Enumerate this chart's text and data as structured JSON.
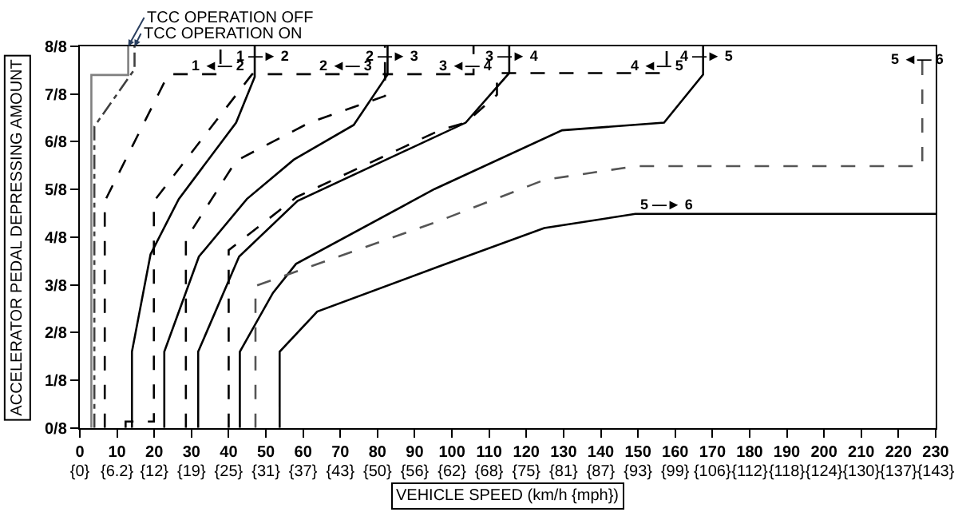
{
  "chart_data": {
    "type": "line",
    "xlabel": "VEHICLE SPEED (km/h {mph})",
    "ylabel": "ACCELERATOR PEDAL DEPRESSING AMOUNT",
    "xlim": [
      0,
      230
    ],
    "xticks": [
      0,
      10,
      20,
      30,
      40,
      50,
      60,
      70,
      80,
      90,
      100,
      110,
      120,
      130,
      140,
      150,
      160,
      170,
      180,
      190,
      200,
      210,
      220,
      230
    ],
    "x2lim": [
      0,
      142.92
    ],
    "x2ticks": [
      {
        "value": 0,
        "label": "{0}"
      },
      {
        "value": 6.21,
        "label": "{6.2}"
      },
      {
        "value": 12.43,
        "label": "{12}"
      },
      {
        "value": 18.64,
        "label": "{19}"
      },
      {
        "value": 24.85,
        "label": "{25}"
      },
      {
        "value": 31.07,
        "label": "{31}"
      },
      {
        "value": 37.28,
        "label": "{37}"
      },
      {
        "value": 43.5,
        "label": "{43}"
      },
      {
        "value": 49.71,
        "label": "{50}"
      },
      {
        "value": 55.92,
        "label": "{56}"
      },
      {
        "value": 62.14,
        "label": "{62}"
      },
      {
        "value": 68.35,
        "label": "{68}"
      },
      {
        "value": 74.56,
        "label": "{75}"
      },
      {
        "value": 80.78,
        "label": "{81}"
      },
      {
        "value": 86.99,
        "label": "{87}"
      },
      {
        "value": 93.21,
        "label": "{93}"
      },
      {
        "value": 99.42,
        "label": "{99}"
      },
      {
        "value": 105.63,
        "label": "{106}"
      },
      {
        "value": 111.85,
        "label": "{112}"
      },
      {
        "value": 118.06,
        "label": "{118}"
      },
      {
        "value": 124.27,
        "label": "{124}"
      },
      {
        "value": 130.49,
        "label": "{130}"
      },
      {
        "value": 136.7,
        "label": "{137}"
      },
      {
        "value": 142.92,
        "label": "{143}"
      }
    ],
    "ylim": [
      0,
      1
    ],
    "yticks": [
      {
        "value": 0,
        "label": "0/8"
      },
      {
        "value": 0.125,
        "label": "1/8"
      },
      {
        "value": 0.25,
        "label": "2/8"
      },
      {
        "value": 0.375,
        "label": "3/8"
      },
      {
        "value": 0.5,
        "label": "4/8"
      },
      {
        "value": 0.625,
        "label": "5/8"
      },
      {
        "value": 0.75,
        "label": "6/8"
      },
      {
        "value": 0.875,
        "label": "7/8"
      },
      {
        "value": 1,
        "label": "8/8"
      }
    ],
    "series": [
      {
        "color": "#808080",
        "line_style": "solid",
        "x": [
          3.1,
          3.1,
          13,
          13
        ],
        "values": [
          0,
          0.925,
          0.925,
          1
        ]
      },
      {
        "color": "#404040",
        "line_style": "dashdot",
        "x": [
          3.9,
          3.9,
          14.7,
          14.7
        ],
        "values": [
          0,
          0.79,
          0.94,
          1
        ]
      },
      {
        "color": "#000000",
        "line_style": "solid",
        "x": [
          14,
          14,
          19,
          26.6,
          42,
          47,
          47
        ],
        "values": [
          0,
          0.2,
          0.455,
          0.6,
          0.8,
          0.92,
          1
        ]
      },
      {
        "color": "#000000",
        "line_style": "dashed",
        "x": [
          6.7,
          6.7,
          23.8,
          37.8,
          37.8
        ],
        "values": [
          0,
          0.594,
          0.927,
          0.927,
          1
        ]
      },
      {
        "color": "#000000",
        "line_style": "solid",
        "x": [
          22.7,
          22.7,
          32,
          44.9,
          57.5,
          73.6,
          82.7,
          82.7
        ],
        "values": [
          0,
          0.2,
          0.449,
          0.6,
          0.703,
          0.794,
          0.926,
          1
        ]
      },
      {
        "color": "#000000",
        "line_style": "dashed",
        "x": [
          12.3,
          12.3,
          19.9,
          19.9,
          46.3,
          82,
          82
        ],
        "values": [
          0,
          0.017,
          0.017,
          0.594,
          0.927,
          0.927,
          1
        ]
      },
      {
        "color": "#000000",
        "line_style": "solid",
        "x": [
          31.8,
          31.8,
          42.8,
          58.5,
          103.7,
          115.4,
          115.4
        ],
        "values": [
          0,
          0.2,
          0.449,
          0.595,
          0.8,
          0.93,
          1
        ]
      },
      {
        "color": "#000000",
        "line_style": "dashed",
        "x": [
          28.5,
          28.5,
          42,
          61.7,
          82,
          82,
          105.8,
          105.8
        ],
        "values": [
          0,
          0.494,
          0.7,
          0.8,
          0.87,
          0.927,
          0.927,
          1
        ]
      },
      {
        "color": "#000000",
        "line_style": "solid",
        "x": [
          43,
          43,
          51.9,
          58.1,
          95.3,
          129.6,
          157,
          167.5,
          167.5
        ],
        "values": [
          0,
          0.2,
          0.354,
          0.43,
          0.626,
          0.78,
          0.8,
          0.926,
          1
        ]
      },
      {
        "color": "#000000",
        "line_style": "dashed",
        "x": [
          40,
          40,
          58.2,
          96.7,
          103.7,
          112.1,
          112.1,
          157.7,
          157.7
        ],
        "values": [
          0,
          0.466,
          0.605,
          0.78,
          0.8,
          0.873,
          0.93,
          0.93,
          1
        ]
      },
      {
        "color": "#000000",
        "line_style": "solid",
        "x": [
          53.7,
          53.7,
          63.8,
          96.7,
          124.8,
          149.3,
          230
        ],
        "values": [
          0,
          0.2,
          0.305,
          0.424,
          0.524,
          0.561,
          0.561
        ]
      },
      {
        "color": "#555555",
        "line_style": "dashed",
        "x": [
          47.2,
          47.2,
          96.7,
          124.8,
          149.3,
          226.4,
          226.4
        ],
        "values": [
          0,
          0.372,
          0.543,
          0.65,
          0.686,
          0.686,
          1
        ]
      }
    ],
    "annotations": [
      {
        "text": "TCC OPERATION OFF",
        "x": 13,
        "y": 1
      },
      {
        "text": "TCC OPERATION ON",
        "x": 14.7,
        "y": 1
      },
      "1 —► 2",
      "1 ◄— 2",
      "2 —► 3",
      "2 ◄— 3",
      "3 —► 4",
      "3 ◄— 4",
      "4 —► 5",
      "4 ◄— 5",
      "5 ◄— 6",
      "5 —► 6"
    ]
  }
}
